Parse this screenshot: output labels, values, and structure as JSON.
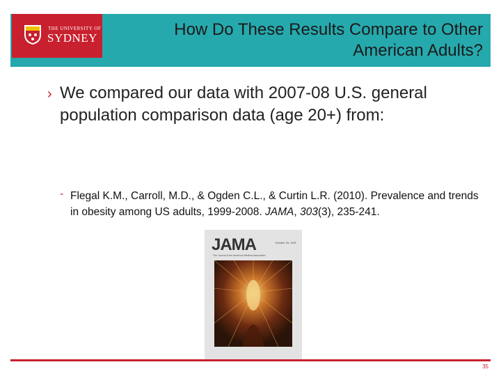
{
  "logo": {
    "small_text": "THE UNIVERSITY OF",
    "big_text": "SYDNEY"
  },
  "slide": {
    "title_line1": "How Do These Results Compare to Other",
    "title_line2": "American Adults?",
    "bullet_arrow": "›",
    "bullet": "We compared our data with 2007-08 U.S. general population comparison data (age 20+) from:",
    "sub_dash": "-",
    "ref_part1": "Flegal K.M., Carroll, M.D., & Ogden C.L., & Curtin L.R. (2010). Prevalence and trends in obesity among US adults, 1999-2008. ",
    "ref_journal": "JAMA",
    "ref_sep": ", ",
    "ref_volume": "303",
    "ref_part2": "(3), 235-241."
  },
  "cover": {
    "masthead": "JAMA",
    "date": "October 20, 2011",
    "tagline": "The Journal of the American Medical Association"
  },
  "footer": {
    "page_number": "35"
  },
  "colors": {
    "header_teal": "#26a9ad",
    "logo_red": "#c8202f",
    "accent_red": "#c8202f"
  }
}
